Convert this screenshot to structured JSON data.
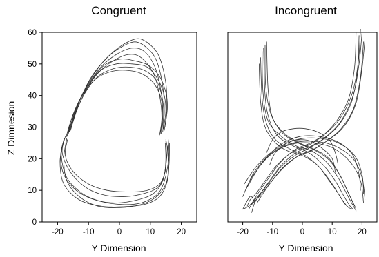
{
  "chart_data": [
    {
      "type": "line",
      "title": "Congruent",
      "xlabel": "Y Dimension",
      "ylabel": "Z Dimnesion",
      "xlim": [
        -25,
        25
      ],
      "ylim": [
        0,
        60
      ],
      "xticks": [
        -20,
        -10,
        0,
        10,
        20
      ],
      "yticks": [
        0,
        10,
        20,
        30,
        40,
        50,
        60
      ],
      "grid": false,
      "series": [
        {
          "x": [
            -16.5,
            -14,
            -10,
            -5,
            0,
            5,
            9,
            12,
            14,
            14.5,
            14
          ],
          "y": [
            28,
            36,
            44,
            51,
            55,
            57,
            55,
            51,
            43,
            35,
            28.5
          ]
        },
        {
          "x": [
            -16.8,
            -15,
            -11,
            -6,
            -1,
            4,
            8,
            11.5,
            13.5,
            14,
            13.5
          ],
          "y": [
            27.5,
            34,
            42,
            49,
            53,
            55,
            54,
            49,
            41,
            34,
            28
          ]
        },
        {
          "x": [
            -16,
            -13,
            -9,
            -4,
            1,
            6,
            10,
            13,
            15,
            15.3,
            14.5
          ],
          "y": [
            29,
            38,
            46,
            52,
            56,
            58,
            56,
            52,
            44,
            36,
            29
          ]
        },
        {
          "x": [
            -17,
            -15,
            -12,
            -7,
            -2,
            3,
            7,
            11,
            13,
            13.7,
            13
          ],
          "y": [
            27,
            33,
            40,
            47,
            51,
            53,
            52,
            47,
            40,
            33,
            27.5
          ]
        },
        {
          "x": [
            -16.2,
            -14,
            -10,
            -6,
            -1,
            4,
            9,
            12.5,
            14.5,
            15,
            14.2
          ],
          "y": [
            28.5,
            35,
            43,
            48,
            50,
            50,
            49,
            45,
            40,
            35,
            29.5
          ]
        },
        {
          "x": [
            -16.6,
            -14.5,
            -11,
            -7,
            -2,
            3,
            8,
            11.8,
            13.8,
            14.3,
            13.6
          ],
          "y": [
            28,
            34,
            41,
            46,
            48.5,
            49,
            48,
            45,
            39.5,
            34,
            28.5
          ]
        },
        {
          "x": [
            -15.8,
            -13.5,
            -9.5,
            -5,
            0,
            5,
            9.5,
            13,
            15,
            15.5,
            14.7
          ],
          "y": [
            29,
            36,
            44,
            49.5,
            51.5,
            51,
            49.5,
            46,
            41,
            36,
            30
          ]
        },
        {
          "x": [
            -17.2,
            -15.5,
            -12,
            -8,
            -3,
            2,
            7,
            11,
            13.5,
            14,
            13.2
          ],
          "y": [
            27,
            32.5,
            40,
            45,
            47.5,
            48,
            47,
            44,
            39,
            33.5,
            28
          ]
        },
        {
          "x": [
            -18,
            -19,
            -18,
            -14,
            -8,
            -1,
            6,
            11,
            14,
            15,
            15.5,
            15
          ],
          "y": [
            26,
            21,
            15,
            10,
            7,
            6,
            7,
            9,
            13,
            18,
            23,
            26
          ]
        },
        {
          "x": [
            -17,
            -18,
            -17,
            -13,
            -7,
            0,
            7,
            12,
            15,
            16,
            16.2
          ],
          "y": [
            26.5,
            20,
            13,
            8,
            5,
            4.5,
            5.5,
            8,
            12,
            18,
            25
          ]
        },
        {
          "x": [
            -17.5,
            -18.5,
            -16,
            -11,
            -5,
            2,
            8,
            12.5,
            14.5,
            15,
            14.8
          ],
          "y": [
            27,
            22,
            16,
            11,
            8.5,
            8,
            9,
            11,
            15,
            20,
            25
          ]
        },
        {
          "x": [
            -18.2,
            -19.2,
            -18,
            -13,
            -6,
            1,
            8,
            13,
            15.5,
            16,
            15.5
          ],
          "y": [
            25,
            19,
            12,
            7,
            5,
            4.8,
            5.5,
            8,
            13,
            19,
            24
          ]
        },
        {
          "x": [
            -16.8,
            -17.5,
            -15,
            -10,
            -4,
            3,
            9,
            13,
            14.8,
            15.2,
            15
          ],
          "y": [
            26,
            21,
            16,
            12,
            10,
            9.5,
            10,
            12,
            16,
            21,
            25.5
          ]
        },
        {
          "x": [
            -17.8,
            -18.8,
            -17,
            -12,
            -6,
            1,
            7,
            12,
            14.2,
            15.5,
            16,
            15.8
          ],
          "y": [
            26.5,
            21,
            14,
            9,
            6.5,
            5.5,
            6,
            8.5,
            12,
            17,
            22,
            26
          ]
        }
      ]
    },
    {
      "type": "line",
      "title": "Incongruent",
      "xlabel": "Y Dimension",
      "ylabel": "",
      "xlim": [
        -25,
        25
      ],
      "ylim": [
        0,
        60
      ],
      "xticks": [
        -20,
        -10,
        0,
        10,
        20
      ],
      "yticks": [
        0,
        10,
        20,
        30,
        40,
        50,
        60
      ],
      "grid": false,
      "series": [
        {
          "x": [
            -13,
            -12.5,
            -11,
            -8,
            -3,
            2,
            7,
            11,
            14,
            16,
            17
          ],
          "y": [
            55,
            40,
            32,
            27,
            24,
            22,
            18,
            13,
            8,
            5,
            4
          ]
        },
        {
          "x": [
            -14,
            -13.5,
            -12,
            -9,
            -4,
            1,
            6,
            10,
            13,
            15,
            16.5
          ],
          "y": [
            52,
            39,
            31,
            26,
            23,
            21,
            17,
            12,
            7.5,
            5,
            4
          ]
        },
        {
          "x": [
            -12,
            -11.5,
            -10,
            -6,
            -1,
            4,
            9,
            13,
            15.5,
            17,
            17.5
          ],
          "y": [
            57,
            42,
            33,
            28,
            25,
            23,
            20,
            14,
            9,
            6,
            5
          ]
        },
        {
          "x": [
            -14.5,
            -14,
            -12.5,
            -9,
            -5,
            0,
            5,
            9,
            12,
            14,
            15.5
          ],
          "y": [
            50,
            38,
            30,
            25,
            22.5,
            21,
            18,
            13,
            9,
            6,
            4.5
          ]
        },
        {
          "x": [
            -13.5,
            -13.2,
            -11.5,
            -7,
            -2,
            3,
            8,
            12,
            14.8,
            16.5,
            18
          ],
          "y": [
            54,
            41,
            32,
            27,
            24,
            22.5,
            19,
            14,
            9,
            6,
            3.5
          ]
        },
        {
          "x": [
            -12.5,
            -12.3,
            -10.5,
            -6.5,
            -1.5,
            3.5,
            8.5,
            12.5,
            15,
            16.8,
            17.8
          ],
          "y": [
            56,
            43,
            34,
            28,
            25,
            23,
            20,
            15,
            10,
            6.5,
            4.5
          ]
        },
        {
          "x": [
            20,
            19,
            17,
            13,
            8,
            3,
            -2,
            -7,
            -11,
            -14,
            -16,
            -17
          ],
          "y": [
            60,
            50,
            40,
            32,
            27,
            24,
            22,
            18,
            13,
            9,
            6,
            3
          ]
        },
        {
          "x": [
            19,
            18.5,
            16.5,
            12.5,
            7.5,
            2.5,
            -2.5,
            -7.5,
            -11.5,
            -15,
            -18,
            -20
          ],
          "y": [
            59,
            48,
            38,
            31,
            26.5,
            23.5,
            21,
            17,
            12,
            8,
            5,
            4
          ]
        },
        {
          "x": [
            21,
            19.8,
            17.8,
            13.8,
            8.8,
            3.8,
            -1.2,
            -6.2,
            -10.2,
            -13.2,
            -15.2
          ],
          "y": [
            58,
            47,
            37,
            30,
            26,
            23,
            21,
            17.5,
            13,
            9,
            6
          ]
        },
        {
          "x": [
            18,
            17.5,
            15.5,
            11.5,
            6.5,
            1.5,
            -3.5,
            -8.5,
            -12.5,
            -15.5,
            -17.5,
            -18.5
          ],
          "y": [
            60,
            49,
            39,
            32,
            27,
            24,
            22,
            18,
            13,
            9,
            7,
            5
          ]
        },
        {
          "x": [
            20.5,
            19.5,
            17.2,
            13,
            8,
            3,
            -2,
            -7,
            -11,
            -14.5,
            -17,
            -18
          ],
          "y": [
            57,
            46,
            36,
            29.5,
            25.5,
            22.5,
            20.5,
            16.5,
            12,
            8,
            5.5,
            4
          ]
        },
        {
          "x": [
            19.5,
            18.8,
            16.8,
            12.8,
            7.8,
            2.8,
            -2.2,
            -7.2,
            -11.2,
            -14.2,
            -16.2,
            -17.2
          ],
          "y": [
            61,
            51,
            41,
            33,
            28,
            25,
            23,
            19,
            14,
            10,
            7,
            5.5
          ]
        },
        {
          "x": [
            -19,
            -16,
            -10,
            -3,
            4,
            11,
            17,
            20,
            21
          ],
          "y": [
            10,
            16,
            22,
            25,
            25.5,
            24,
            20,
            14,
            7
          ]
        },
        {
          "x": [
            -20,
            -17,
            -11,
            -4,
            3,
            10,
            16,
            19.5,
            20.5
          ],
          "y": [
            8,
            14,
            21,
            24.5,
            25,
            23.5,
            19,
            13,
            6
          ]
        },
        {
          "x": [
            -19.5,
            -15,
            -9,
            -2,
            5,
            12,
            17.5,
            20,
            20.5
          ],
          "y": [
            12,
            18,
            23,
            26,
            26.5,
            25,
            21,
            15,
            9
          ]
        },
        {
          "x": [
            -18.5,
            -14,
            -8,
            -1,
            6,
            12.5,
            17,
            19,
            19.5
          ],
          "y": [
            11,
            18,
            24,
            27,
            27,
            25,
            21,
            15,
            10
          ]
        },
        {
          "x": [
            -12,
            -10,
            -7,
            -3,
            1,
            5,
            9,
            11,
            12
          ],
          "y": [
            22,
            26,
            28.5,
            29.5,
            29.5,
            28.5,
            26,
            22,
            18
          ]
        },
        {
          "x": [
            -11,
            -9,
            -5,
            -1,
            3,
            7,
            10,
            11
          ],
          "y": [
            18,
            22,
            25,
            26,
            25.5,
            23,
            20,
            16
          ]
        },
        {
          "x": [
            -20,
            -18,
            -17,
            -16
          ],
          "y": [
            4,
            7.5,
            8,
            6
          ]
        }
      ]
    }
  ]
}
